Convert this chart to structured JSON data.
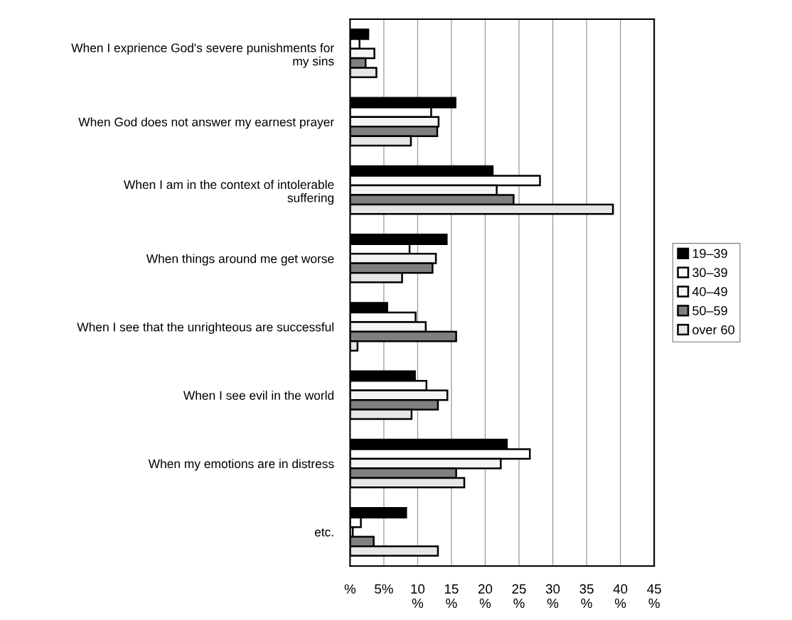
{
  "chart_data": {
    "type": "bar",
    "orientation": "horizontal",
    "categories": [
      "When I exprience God's severe punishments for\nmy sins",
      "When God does not answer my earnest prayer",
      "When I am in the context of intolerable\nsuffering",
      "When things around me get worse",
      "When I see that the unrighteous are successful",
      "When I see evil in the world",
      "When my emotions are in distress",
      "etc."
    ],
    "series": [
      {
        "name": "19–39",
        "color": "#000000",
        "values": [
          2.7,
          15.6,
          21.1,
          14.3,
          5.5,
          9.6,
          23.2,
          8.3
        ]
      },
      {
        "name": "30–39",
        "color": "#ffffff",
        "values": [
          1.4,
          12.0,
          28.1,
          8.8,
          9.7,
          11.3,
          26.6,
          1.6
        ]
      },
      {
        "name": "40–49",
        "color": "#f4f4f4",
        "values": [
          3.6,
          13.1,
          21.7,
          12.7,
          11.2,
          14.4,
          22.3,
          0.4
        ]
      },
      {
        "name": "50–59",
        "color": "#7f7f7f",
        "values": [
          2.3,
          12.9,
          24.2,
          12.2,
          15.7,
          13.0,
          15.7,
          3.5
        ]
      },
      {
        "name": "over 60",
        "color": "#e6e6e6",
        "values": [
          3.9,
          9.0,
          38.9,
          7.7,
          1.1,
          9.1,
          16.9,
          13.0
        ]
      }
    ],
    "xlim": [
      0,
      45
    ],
    "xticks": [
      {
        "value": 0,
        "label": "%"
      },
      {
        "value": 5,
        "label": "5%"
      },
      {
        "value": 10,
        "label": "10\n%"
      },
      {
        "value": 15,
        "label": "15\n%"
      },
      {
        "value": 20,
        "label": "20\n%"
      },
      {
        "value": 25,
        "label": "25\n%"
      },
      {
        "value": 30,
        "label": "30\n%"
      },
      {
        "value": 35,
        "label": "35\n%"
      },
      {
        "value": 40,
        "label": "40\n%"
      },
      {
        "value": 45,
        "label": "45\n%"
      }
    ],
    "grid": "x",
    "legend": "right"
  }
}
